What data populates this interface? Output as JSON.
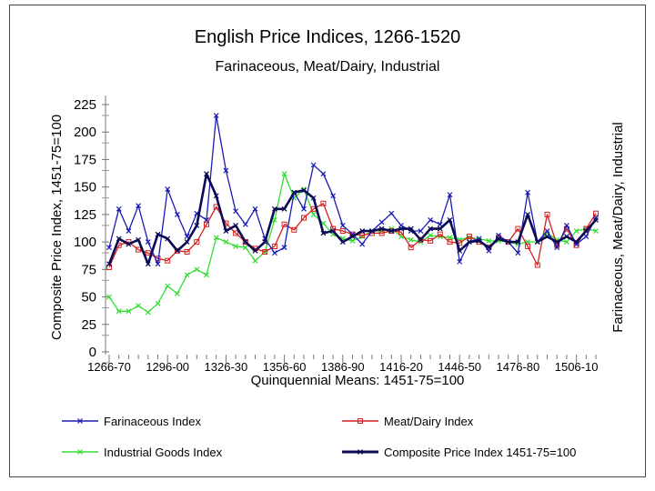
{
  "chart_data": {
    "type": "line",
    "title": "English Price Indices, 1266-1520",
    "subtitle": "Farinaceous, Meat/Dairy, Industrial",
    "xlabel": "Quinquennial Means: 1451-75=100",
    "ylabel": "Composite Price Index, 1451-75=100",
    "y2label": "Farinaceous, Meat/Dairy, Industrial",
    "ylim": [
      0,
      225
    ],
    "yticks": [
      0,
      25,
      50,
      75,
      100,
      125,
      150,
      175,
      200,
      225
    ],
    "xtick_labels": [
      "1266-70",
      "1296-00",
      "1326-30",
      "1356-60",
      "1386-90",
      "1416-20",
      "1446-50",
      "1476-80",
      "1506-10"
    ],
    "xtick_positions": [
      0,
      6,
      12,
      18,
      24,
      30,
      36,
      42,
      48
    ],
    "periods": 51,
    "series": [
      {
        "name": "Farinaceous Index",
        "color": "#1a1ab4",
        "marker": "x",
        "values": [
          95,
          130,
          110,
          133,
          100,
          80,
          148,
          125,
          105,
          126,
          120,
          215,
          165,
          128,
          116,
          130,
          103,
          90,
          95,
          145,
          130,
          170,
          162,
          142,
          115,
          107,
          98,
          110,
          118,
          126,
          115,
          110,
          110,
          120,
          116,
          143,
          82,
          100,
          103,
          92,
          106,
          100,
          90,
          145,
          100,
          110,
          95,
          115,
          98,
          105,
          122
        ]
      },
      {
        "name": "Meat/Dairy Index",
        "color": "#d42020",
        "marker": "square",
        "values": [
          77,
          97,
          100,
          93,
          90,
          85,
          83,
          92,
          91,
          100,
          116,
          132,
          117,
          108,
          100,
          94,
          91,
          96,
          116,
          111,
          122,
          130,
          135,
          112,
          110,
          107,
          106,
          108,
          108,
          110,
          109,
          95,
          102,
          101,
          107,
          100,
          99,
          105,
          100,
          95,
          104,
          100,
          112,
          96,
          79,
          125,
          97,
          112,
          97,
          112,
          126
        ]
      },
      {
        "name": "Industrial Goods Index",
        "color": "#33dd33",
        "marker": "x",
        "values": [
          50,
          37,
          37,
          42,
          36,
          44,
          60,
          53,
          70,
          75,
          70,
          104,
          100,
          96,
          95,
          83,
          91,
          120,
          162,
          140,
          148,
          125,
          117,
          107,
          103,
          101,
          105,
          110,
          110,
          112,
          105,
          102,
          100,
          106,
          105,
          104,
          102,
          104,
          103,
          101,
          101,
          100,
          98,
          100,
          100,
          108,
          102,
          100,
          110,
          112,
          110
        ]
      },
      {
        "name": "Composite Price Index 1451-75=100",
        "color": "#0a0a55",
        "marker": "x",
        "values": [
          80,
          103,
          98,
          102,
          80,
          107,
          103,
          92,
          100,
          115,
          162,
          142,
          110,
          115,
          100,
          92,
          100,
          130,
          130,
          145,
          147,
          140,
          108,
          110,
          100,
          105,
          110,
          110,
          112,
          110,
          112,
          112,
          102,
          112,
          112,
          120,
          92,
          100,
          101,
          95,
          103,
          100,
          100,
          125,
          100,
          105,
          100,
          105,
          100,
          110,
          120
        ]
      }
    ],
    "legend": [
      {
        "label": "Farinaceous Index",
        "series": 0
      },
      {
        "label": "Meat/Dairy Index",
        "series": 1
      },
      {
        "label": "Industrial Goods Index",
        "series": 2
      },
      {
        "label": "Composite Price Index 1451-75=100",
        "series": 3
      }
    ],
    "legend_position": "bottom"
  }
}
